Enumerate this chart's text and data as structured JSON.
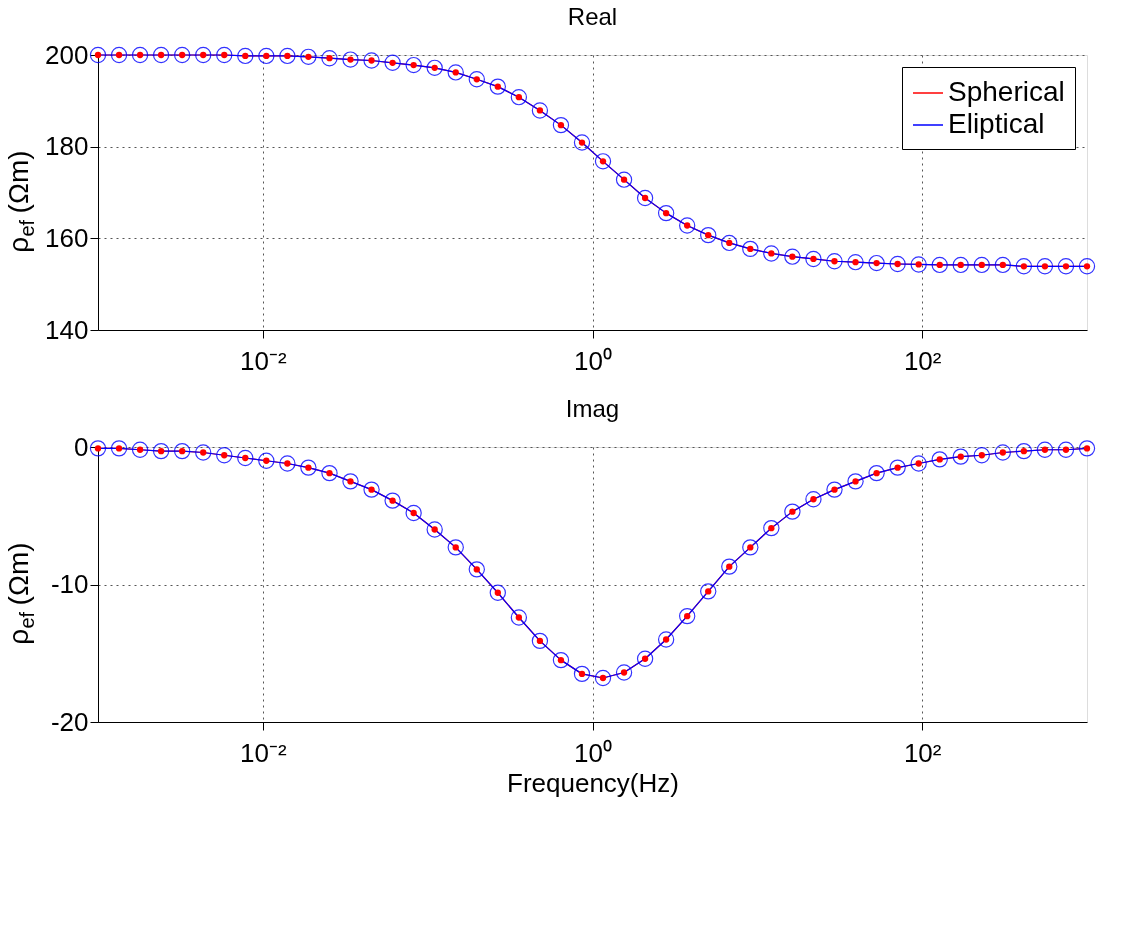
{
  "chart_data": [
    {
      "type": "line",
      "title": "Real",
      "ylabel": "ρ$_{ef}$ (Ωm)",
      "log": "x",
      "grid": true,
      "legend": "top right",
      "marker": "circle",
      "line_style": "solid",
      "x": [
        0.001,
        0.001342,
        0.0018,
        0.002415,
        0.00324,
        0.004348,
        0.005834,
        0.007827,
        0.0105,
        0.01409,
        0.0189,
        0.02537,
        0.03403,
        0.04566,
        0.06127,
        0.08221,
        0.1103,
        0.148,
        0.1986,
        0.2664,
        0.3575,
        0.4797,
        0.6436,
        0.8636,
        1.158,
        1.554,
        2.085,
        2.797,
        3.753,
        5.036,
        6.757,
        9.066,
        12.16,
        16.32,
        21.9,
        29.38,
        39.42,
        52.9,
        70.97,
        95.22,
        127.8,
        171.4,
        230,
        308.6,
        414,
        555.5,
        745.4,
        1000
      ],
      "xlim": [
        0.001,
        1000
      ],
      "xticks": [
        {
          "value": 0.01,
          "label": "10⁻²"
        },
        {
          "value": 1,
          "label": "10⁰"
        },
        {
          "value": 100,
          "label": "10²"
        }
      ],
      "ylim": [
        140,
        200
      ],
      "yticks": [
        140,
        160,
        180,
        200
      ],
      "series": [
        {
          "name": "Spherical",
          "color": "#ff0000",
          "values": [
            200,
            200,
            200,
            200,
            200,
            200,
            200,
            199.8,
            199.8,
            199.8,
            199.6,
            199.3,
            199.0,
            198.8,
            198.3,
            197.8,
            197.2,
            196.2,
            194.7,
            193.1,
            190.8,
            187.9,
            184.7,
            180.9,
            176.8,
            172.8,
            168.8,
            165.5,
            162.8,
            160.7,
            159.0,
            157.7,
            156.7,
            156.0,
            155.5,
            155.0,
            154.8,
            154.6,
            154.4,
            154.3,
            154.2,
            154.2,
            154.2,
            154.2,
            153.9,
            153.9,
            153.9,
            153.9
          ]
        },
        {
          "name": "Eliptical",
          "color": "#0000ff",
          "values": [
            200,
            200,
            200,
            200,
            200,
            200,
            200,
            199.8,
            199.8,
            199.8,
            199.6,
            199.3,
            199.0,
            198.8,
            198.3,
            197.8,
            197.2,
            196.2,
            194.7,
            193.1,
            190.8,
            187.9,
            184.7,
            180.9,
            176.8,
            172.8,
            168.8,
            165.5,
            162.8,
            160.7,
            159.0,
            157.7,
            156.7,
            156.0,
            155.5,
            155.0,
            154.8,
            154.6,
            154.4,
            154.3,
            154.2,
            154.2,
            154.2,
            154.2,
            153.9,
            153.9,
            153.9,
            153.9
          ]
        }
      ]
    },
    {
      "type": "line",
      "title": "Imag",
      "ylabel": "ρ$_{ef}$ (Ωm)",
      "xlabel": "Frequency(Hz)",
      "log": "x",
      "grid": true,
      "marker": "circle",
      "line_style": "solid",
      "x": [
        0.001,
        0.001342,
        0.0018,
        0.002415,
        0.00324,
        0.004348,
        0.005834,
        0.007827,
        0.0105,
        0.01409,
        0.0189,
        0.02537,
        0.03403,
        0.04566,
        0.06127,
        0.08221,
        0.1103,
        0.148,
        0.1986,
        0.2664,
        0.3575,
        0.4797,
        0.6436,
        0.8636,
        1.158,
        1.554,
        2.085,
        2.797,
        3.753,
        5.036,
        6.757,
        9.066,
        12.16,
        16.32,
        21.9,
        29.38,
        39.42,
        52.9,
        70.97,
        95.22,
        127.8,
        171.4,
        230,
        308.6,
        414,
        555.5,
        745.4,
        1000
      ],
      "xlim": [
        0.001,
        1000
      ],
      "xticks": [
        {
          "value": 0.01,
          "label": "10⁻²"
        },
        {
          "value": 1,
          "label": "10⁰"
        },
        {
          "value": 100,
          "label": "10²"
        }
      ],
      "ylim": [
        -20,
        0
      ],
      "yticks": [
        -20,
        -10,
        0
      ],
      "series": [
        {
          "color": "#ff0000",
          "values": [
            -0.1,
            -0.1,
            -0.2,
            -0.3,
            -0.3,
            -0.4,
            -0.6,
            -0.8,
            -1.0,
            -1.2,
            -1.5,
            -1.9,
            -2.5,
            -3.1,
            -3.9,
            -4.8,
            -6.0,
            -7.3,
            -8.9,
            -10.6,
            -12.4,
            -14.1,
            -15.5,
            -16.5,
            -16.8,
            -16.4,
            -15.4,
            -14.0,
            -12.3,
            -10.5,
            -8.7,
            -7.3,
            -5.9,
            -4.7,
            -3.8,
            -3.1,
            -2.5,
            -1.9,
            -1.5,
            -1.2,
            -0.9,
            -0.7,
            -0.6,
            -0.4,
            -0.3,
            -0.2,
            -0.2,
            -0.1
          ]
        },
        {
          "color": "#0000ff",
          "values": [
            -0.1,
            -0.1,
            -0.2,
            -0.3,
            -0.3,
            -0.4,
            -0.6,
            -0.8,
            -1.0,
            -1.2,
            -1.5,
            -1.9,
            -2.5,
            -3.1,
            -3.9,
            -4.8,
            -6.0,
            -7.3,
            -8.9,
            -10.6,
            -12.4,
            -14.1,
            -15.5,
            -16.5,
            -16.8,
            -16.4,
            -15.4,
            -14.0,
            -12.3,
            -10.5,
            -8.7,
            -7.3,
            -5.9,
            -4.7,
            -3.8,
            -3.1,
            -2.5,
            -1.9,
            -1.5,
            -1.2,
            -0.9,
            -0.7,
            -0.6,
            -0.4,
            -0.3,
            -0.2,
            -0.2,
            -0.1
          ]
        }
      ]
    }
  ]
}
